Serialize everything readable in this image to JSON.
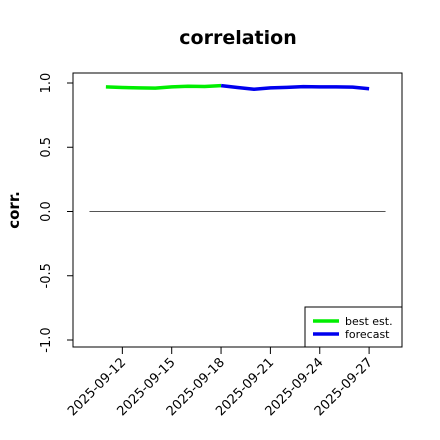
{
  "chart_data": {
    "type": "line",
    "title": "correlation",
    "ylabel": "corr.",
    "xlabel": "",
    "ylim": [
      -1.0,
      1.0
    ],
    "yticks": [
      "-1.0",
      "-0.5",
      "0.0",
      "0.5",
      "1.0"
    ],
    "ytick_values": [
      -1.0,
      -0.5,
      0.0,
      0.5,
      1.0
    ],
    "x_range": [
      "2025-09-09",
      "2025-09-29"
    ],
    "xticks": [
      "2025-09-12",
      "2025-09-15",
      "2025-09-18",
      "2025-09-21",
      "2025-09-24",
      "2025-09-27"
    ],
    "highlight_tick": "2025-09-18",
    "highlight_color": "#228b22",
    "reference_line": 0.0,
    "reference_line_range": [
      "2025-09-10",
      "2025-09-28"
    ],
    "legend_position": "bottom-right",
    "grid": false,
    "series": [
      {
        "name": "best est.",
        "color": "#00ee00",
        "x": [
          "2025-09-11",
          "2025-09-12",
          "2025-09-13",
          "2025-09-14",
          "2025-09-15",
          "2025-09-16",
          "2025-09-17",
          "2025-09-18"
        ],
        "values": [
          0.97,
          0.965,
          0.962,
          0.96,
          0.97,
          0.975,
          0.973,
          0.98
        ]
      },
      {
        "name": "forecast",
        "color": "#0000ee",
        "x": [
          "2025-09-18",
          "2025-09-19",
          "2025-09-20",
          "2025-09-21",
          "2025-09-22",
          "2025-09-23",
          "2025-09-24",
          "2025-09-25",
          "2025-09-26",
          "2025-09-27"
        ],
        "values": [
          0.98,
          0.965,
          0.952,
          0.962,
          0.966,
          0.972,
          0.97,
          0.97,
          0.968,
          0.955
        ]
      }
    ]
  }
}
